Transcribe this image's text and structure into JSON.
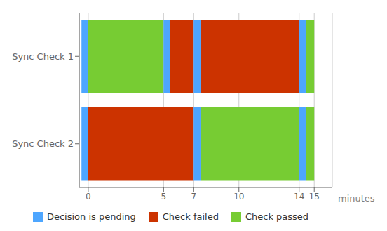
{
  "chart_data": {
    "type": "bar",
    "orientation": "horizontal",
    "stacked": true,
    "xlabel": "minutes",
    "categories": [
      "Sync Check 1",
      "Sync Check 2"
    ],
    "starts": [
      -0.45,
      -0.45
    ],
    "segments": [
      [
        {
          "duration": 0.45,
          "series": "Decision is pending"
        },
        {
          "duration": 5.0,
          "series": "Check passed"
        },
        {
          "duration": 0.45,
          "series": "Decision is pending"
        },
        {
          "duration": 1.55,
          "series": "Check failed"
        },
        {
          "duration": 0.45,
          "series": "Decision is pending"
        },
        {
          "duration": 6.55,
          "series": "Check failed"
        },
        {
          "duration": 0.45,
          "series": "Decision is pending"
        },
        {
          "duration": 0.55,
          "series": "Check passed"
        }
      ],
      [
        {
          "duration": 0.45,
          "series": "Decision is pending"
        },
        {
          "duration": 7.0,
          "series": "Check failed"
        },
        {
          "duration": 0.45,
          "series": "Decision is pending"
        },
        {
          "duration": 6.55,
          "series": "Check passed"
        },
        {
          "duration": 0.45,
          "series": "Decision is pending"
        },
        {
          "duration": 0.55,
          "series": "Check passed"
        }
      ]
    ],
    "series": [
      {
        "name": "Decision is pending",
        "color": "#4DA6FF"
      },
      {
        "name": "Check failed",
        "color": "#CC3300"
      },
      {
        "name": "Check passed",
        "color": "#77CC33"
      }
    ],
    "xlim": [
      -0.6,
      16.2
    ],
    "xticks": [
      0,
      5,
      7,
      10,
      14,
      15
    ],
    "grid": true
  }
}
